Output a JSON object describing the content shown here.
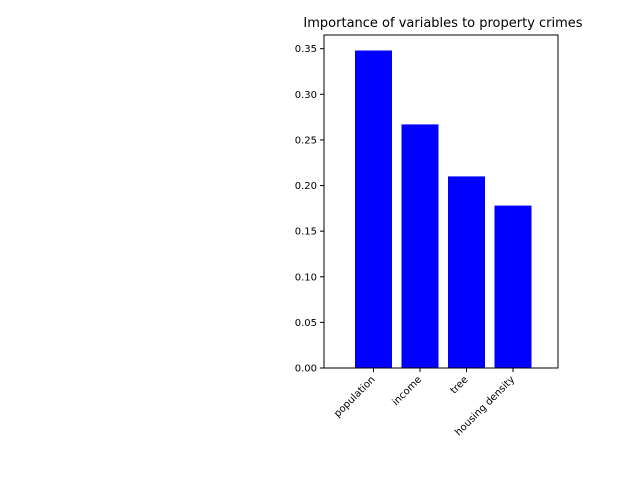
{
  "chart_data": {
    "type": "bar",
    "title": "Importance of variables to property crimes",
    "xlabel": "",
    "ylabel": "",
    "categories": [
      "population",
      "income",
      "tree",
      "housing density"
    ],
    "values": [
      0.348,
      0.267,
      0.21,
      0.178
    ],
    "ylim": [
      0,
      0.365
    ],
    "yticks": [
      0.0,
      0.05,
      0.1,
      0.15,
      0.2,
      0.25,
      0.3,
      0.35
    ],
    "ytick_labels": [
      "0.00",
      "0.05",
      "0.10",
      "0.15",
      "0.20",
      "0.25",
      "0.30",
      "0.35"
    ],
    "bar_color": "#0000ff",
    "grid": false,
    "legend": "none"
  }
}
